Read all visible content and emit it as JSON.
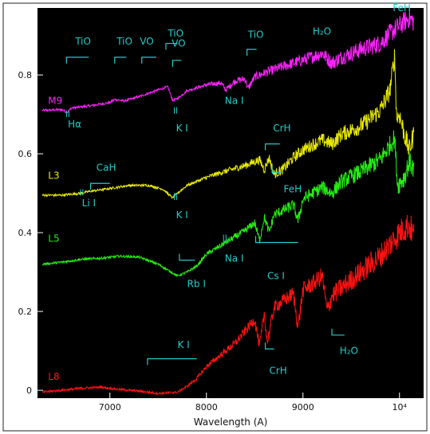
{
  "chart_data": {
    "type": "line",
    "xlabel": "Wavelength (A)",
    "ylabel": "",
    "xlim": [
      6250,
      10250
    ],
    "ylim": [
      -0.02,
      0.97
    ],
    "x_ticks": [
      {
        "value": 7000,
        "label": "7000"
      },
      {
        "value": 8000,
        "label": "8000"
      },
      {
        "value": 9000,
        "label": "9000"
      },
      {
        "value": 10000,
        "label": "10⁴"
      }
    ],
    "y_ticks": [
      {
        "value": 0,
        "label": "0"
      },
      {
        "value": 0.2,
        "label": "0.2"
      },
      {
        "value": 0.4,
        "label": "0.4"
      },
      {
        "value": 0.6,
        "label": "0.6"
      },
      {
        "value": 0.8,
        "label": "0.8"
      }
    ],
    "grid": false,
    "series": [
      {
        "name": "M9",
        "color": "#ff22ff",
        "label_at": [
          6360,
          0.735
        ],
        "points": [
          [
            6300,
            0.71
          ],
          [
            6500,
            0.712
          ],
          [
            6560,
            0.705
          ],
          [
            6600,
            0.716
          ],
          [
            6800,
            0.722
          ],
          [
            7000,
            0.73
          ],
          [
            7050,
            0.738
          ],
          [
            7150,
            0.734
          ],
          [
            7300,
            0.745
          ],
          [
            7500,
            0.762
          ],
          [
            7600,
            0.77
          ],
          [
            7650,
            0.735
          ],
          [
            7700,
            0.74
          ],
          [
            7800,
            0.76
          ],
          [
            8000,
            0.775
          ],
          [
            8150,
            0.78
          ],
          [
            8200,
            0.762
          ],
          [
            8300,
            0.785
          ],
          [
            8400,
            0.79
          ],
          [
            8430,
            0.765
          ],
          [
            8500,
            0.795
          ],
          [
            8600,
            0.805
          ],
          [
            8800,
            0.822
          ],
          [
            9000,
            0.838
          ],
          [
            9200,
            0.855
          ],
          [
            9300,
            0.83
          ],
          [
            9400,
            0.845
          ],
          [
            9600,
            0.865
          ],
          [
            9800,
            0.88
          ],
          [
            9900,
            0.905
          ],
          [
            10000,
            0.925
          ],
          [
            10100,
            0.945
          ],
          [
            10150,
            0.935
          ]
        ]
      },
      {
        "name": "L3",
        "color": "#eaea00",
        "label_at": [
          6360,
          0.545
        ],
        "points": [
          [
            6300,
            0.495
          ],
          [
            6500,
            0.495
          ],
          [
            6700,
            0.5
          ],
          [
            6800,
            0.505
          ],
          [
            7000,
            0.512
          ],
          [
            7200,
            0.52
          ],
          [
            7400,
            0.52
          ],
          [
            7550,
            0.51
          ],
          [
            7650,
            0.488
          ],
          [
            7700,
            0.5
          ],
          [
            7800,
            0.52
          ],
          [
            8000,
            0.54
          ],
          [
            8200,
            0.556
          ],
          [
            8400,
            0.57
          ],
          [
            8550,
            0.585
          ],
          [
            8600,
            0.56
          ],
          [
            8650,
            0.59
          ],
          [
            8700,
            0.548
          ],
          [
            8800,
            0.562
          ],
          [
            8900,
            0.59
          ],
          [
            9000,
            0.61
          ],
          [
            9200,
            0.635
          ],
          [
            9300,
            0.625
          ],
          [
            9400,
            0.65
          ],
          [
            9600,
            0.67
          ],
          [
            9800,
            0.71
          ],
          [
            9900,
            0.76
          ],
          [
            9950,
            0.85
          ],
          [
            9970,
            0.69
          ],
          [
            10000,
            0.7
          ],
          [
            10050,
            0.65
          ],
          [
            10100,
            0.61
          ],
          [
            10150,
            0.65
          ]
        ]
      },
      {
        "name": "L5",
        "color": "#22ee11",
        "label_at": [
          6360,
          0.385
        ],
        "points": [
          [
            6300,
            0.32
          ],
          [
            6500,
            0.325
          ],
          [
            6700,
            0.332
          ],
          [
            6900,
            0.335
          ],
          [
            7100,
            0.34
          ],
          [
            7300,
            0.338
          ],
          [
            7500,
            0.32
          ],
          [
            7700,
            0.29
          ],
          [
            7800,
            0.3
          ],
          [
            7900,
            0.315
          ],
          [
            8000,
            0.345
          ],
          [
            8200,
            0.375
          ],
          [
            8400,
            0.405
          ],
          [
            8500,
            0.425
          ],
          [
            8550,
            0.38
          ],
          [
            8600,
            0.44
          ],
          [
            8650,
            0.4
          ],
          [
            8700,
            0.445
          ],
          [
            8900,
            0.47
          ],
          [
            8950,
            0.43
          ],
          [
            9000,
            0.485
          ],
          [
            9200,
            0.515
          ],
          [
            9300,
            0.5
          ],
          [
            9400,
            0.53
          ],
          [
            9600,
            0.555
          ],
          [
            9800,
            0.585
          ],
          [
            9950,
            0.64
          ],
          [
            9980,
            0.52
          ],
          [
            10050,
            0.54
          ],
          [
            10100,
            0.58
          ],
          [
            10150,
            0.56
          ]
        ]
      },
      {
        "name": "L8",
        "color": "#ff1111",
        "label_at": [
          6360,
          0.035
        ],
        "points": [
          [
            6300,
            -0.005
          ],
          [
            6500,
            0.0
          ],
          [
            6700,
            0.005
          ],
          [
            6900,
            0.008
          ],
          [
            7100,
            0.002
          ],
          [
            7300,
            -0.002
          ],
          [
            7500,
            -0.008
          ],
          [
            7700,
            -0.005
          ],
          [
            7800,
            0.01
          ],
          [
            7900,
            0.03
          ],
          [
            8000,
            0.06
          ],
          [
            8200,
            0.1
          ],
          [
            8300,
            0.12
          ],
          [
            8400,
            0.15
          ],
          [
            8500,
            0.18
          ],
          [
            8550,
            0.11
          ],
          [
            8600,
            0.195
          ],
          [
            8630,
            0.12
          ],
          [
            8700,
            0.21
          ],
          [
            8900,
            0.245
          ],
          [
            8950,
            0.16
          ],
          [
            9000,
            0.255
          ],
          [
            9100,
            0.27
          ],
          [
            9200,
            0.29
          ],
          [
            9250,
            0.2
          ],
          [
            9300,
            0.24
          ],
          [
            9400,
            0.26
          ],
          [
            9600,
            0.3
          ],
          [
            9800,
            0.34
          ],
          [
            9900,
            0.37
          ],
          [
            10000,
            0.4
          ],
          [
            10100,
            0.42
          ],
          [
            10150,
            0.39
          ]
        ]
      }
    ],
    "annotations": [
      {
        "text": "TiO",
        "at": [
          6640,
          0.885
        ],
        "color": "#22cccc",
        "bracket": [
          6550,
          6780,
          0.845,
          "down"
        ]
      },
      {
        "text": "TiO",
        "at": [
          7070,
          0.885
        ],
        "color": "#22cccc",
        "bracket": [
          7050,
          7170,
          0.845,
          "down"
        ]
      },
      {
        "text": "VO",
        "at": [
          7310,
          0.885
        ],
        "color": "#22cccc",
        "bracket": [
          7330,
          7480,
          0.845,
          "down"
        ]
      },
      {
        "text": "TiO",
        "at": [
          7600,
          0.905
        ],
        "color": "#22cccc",
        "bracket": [
          7580,
          7700,
          0.88,
          "down"
        ]
      },
      {
        "text": "VO",
        "at": [
          7640,
          0.88
        ],
        "color": "#22cccc",
        "bracket": [
          7650,
          7740,
          0.837,
          "down"
        ]
      },
      {
        "text": "TiO",
        "at": [
          8430,
          0.902
        ],
        "color": "#22cccc",
        "bracket": [
          8420,
          8520,
          0.865,
          "down"
        ]
      },
      {
        "text": "H₂O",
        "at": [
          9100,
          0.91
        ],
        "color": "#22cccc"
      },
      {
        "text": "FeH",
        "at": [
          9930,
          0.97
        ],
        "color": "#22cccc"
      },
      {
        "text": "Hα",
        "at": [
          6565,
          0.675
        ],
        "color": "#22cccc",
        "tick": [
          6563,
          0.71,
          0.693
        ]
      },
      {
        "text": "K I",
        "at": [
          7685,
          0.665
        ],
        "color": "#22cccc",
        "tick": [
          7680,
          0.718,
          0.702
        ]
      },
      {
        "text": "Na I",
        "at": [
          8190,
          0.735
        ],
        "color": "#22cccc"
      },
      {
        "text": "CrH",
        "at": [
          8690,
          0.665
        ],
        "color": "#22cccc",
        "bracket": [
          8610,
          8760,
          0.625,
          "down"
        ]
      },
      {
        "text": "FeH",
        "at": [
          8800,
          0.51
        ],
        "color": "#22cccc",
        "bracket": [
          8680,
          8780,
          0.553,
          "up"
        ]
      },
      {
        "text": "CaH",
        "at": [
          6860,
          0.565
        ],
        "color": "#22cccc",
        "bracket": [
          6800,
          7000,
          0.525,
          "down"
        ]
      },
      {
        "text": "Li I",
        "at": [
          6710,
          0.475
        ],
        "color": "#22cccc",
        "tick": [
          6708,
          0.51,
          0.494
        ]
      },
      {
        "text": "K I",
        "at": [
          7685,
          0.445
        ],
        "color": "#22cccc",
        "tick": [
          7680,
          0.5,
          0.483
        ]
      },
      {
        "text": "Na I",
        "at": [
          8190,
          0.335
        ],
        "color": "#22cccc",
        "tick": [
          8190,
          0.395,
          0.375
        ]
      },
      {
        "text": "Rb I",
        "at": [
          7800,
          0.27
        ],
        "color": "#22cccc",
        "bracket": [
          7720,
          7880,
          0.33,
          "up"
        ]
      },
      {
        "text": "Cs I",
        "at": [
          8630,
          0.29
        ],
        "color": "#22cccc",
        "bracket": [
          8510,
          8950,
          0.375,
          "up"
        ]
      },
      {
        "text": "K I",
        "at": [
          7700,
          0.115
        ],
        "color": "#22cccc",
        "bracket": [
          7390,
          7900,
          0.08,
          "down"
        ]
      },
      {
        "text": "CrH",
        "at": [
          8650,
          0.05
        ],
        "color": "#22cccc",
        "bracket": [
          8610,
          8700,
          0.105,
          "up"
        ]
      },
      {
        "text": "H₂O",
        "at": [
          9380,
          0.1
        ],
        "color": "#22cccc",
        "bracket": [
          9300,
          9430,
          0.14,
          "up"
        ]
      }
    ]
  }
}
